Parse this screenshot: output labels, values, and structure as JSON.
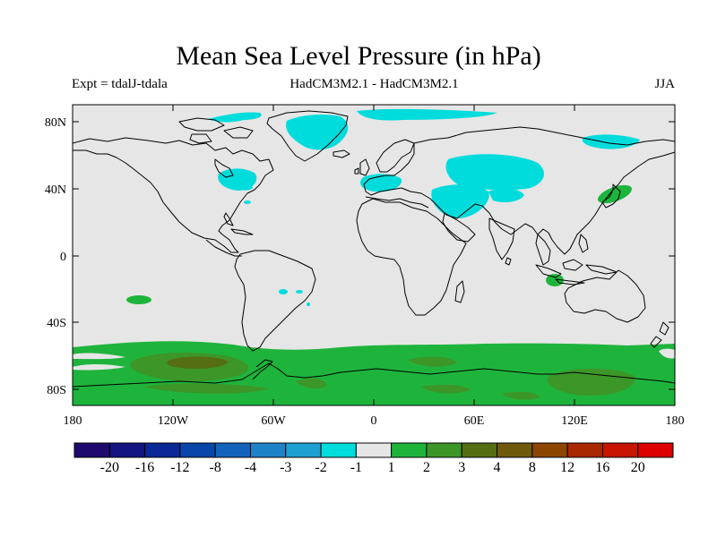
{
  "title": "Mean Sea Level Pressure (in hPa)",
  "subtitle_left": "Expt = tdalJ-tdala",
  "subtitle_center": "HadCM3M2.1 - HadCM3M2.1",
  "subtitle_right": "JJA",
  "map": {
    "lat_ticks": [
      "80N",
      "40N",
      "0",
      "40S",
      "80S"
    ],
    "lon_ticks": [
      "180",
      "120W",
      "60W",
      "0",
      "60E",
      "120E",
      "180"
    ],
    "background_color": "#e6e6e6",
    "coastline_color": "#000000"
  },
  "colorbar": {
    "colors": [
      "#1e0a6e",
      "#141482",
      "#0a2896",
      "#0a46aa",
      "#1464be",
      "#1e82c8",
      "#1ea0d2",
      "#00dcdc",
      "#e6e6e6",
      "#1eb43c",
      "#3c9628",
      "#556e14",
      "#6e5a0a",
      "#8c4600",
      "#aa2800",
      "#c81400",
      "#dc0000"
    ],
    "labels": [
      "-20",
      "-16",
      "-12",
      "-8",
      "-4",
      "-3",
      "-2",
      "-1",
      "1",
      "2",
      "3",
      "4",
      "8",
      "12",
      "16",
      "20"
    ]
  }
}
